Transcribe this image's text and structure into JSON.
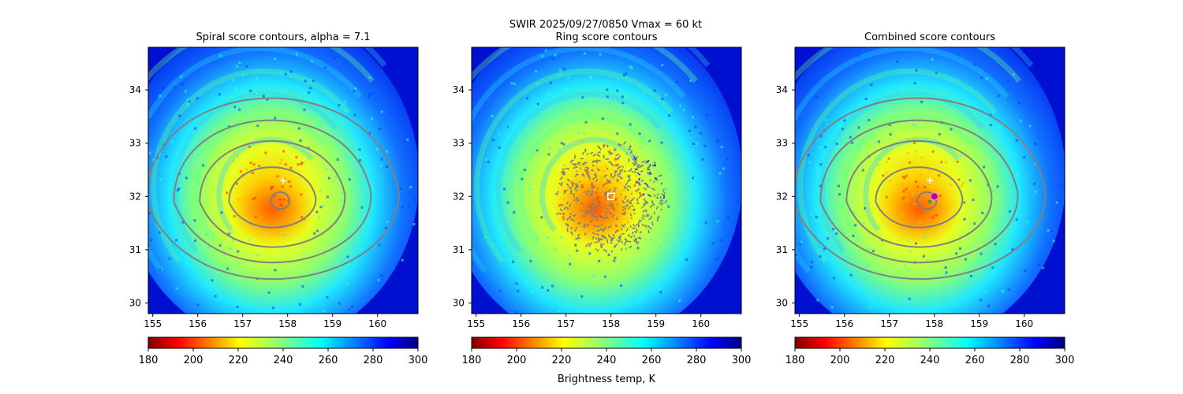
{
  "figure": {
    "suptitle_line1": "SWIR  2025/09/27/0850    Vmax = 60 kt",
    "colorbar_label": "Brightness temp, K"
  },
  "chart_data": [
    {
      "type": "heatmap",
      "title": "Spiral score contours, alpha =  7.1",
      "xlim": [
        154.9,
        160.9
      ],
      "ylim": [
        29.8,
        34.8
      ],
      "xticks": [
        "155",
        "156",
        "157",
        "158",
        "159",
        "160"
      ],
      "yticks": [
        "30",
        "31",
        "32",
        "33",
        "34"
      ],
      "overlay": "spiral",
      "markers": [
        {
          "name": "first-guess-cross",
          "x": 157.9,
          "y": 32.3,
          "color": "#ffffff",
          "shape": "plus"
        }
      ],
      "colorbar": {
        "vmin": 180,
        "vmax": 300,
        "ticks": [
          "180",
          "200",
          "220",
          "240",
          "260",
          "280",
          "300"
        ],
        "cmap": "jet_r"
      }
    },
    {
      "type": "heatmap",
      "title": "Ring score contours",
      "xlim": [
        154.9,
        160.9
      ],
      "ylim": [
        29.8,
        34.8
      ],
      "xticks": [
        "155",
        "156",
        "157",
        "158",
        "159",
        "160"
      ],
      "yticks": [
        "30",
        "31",
        "32",
        "33",
        "34"
      ],
      "overlay": "ring",
      "markers": [
        {
          "name": "ring-center-square",
          "x": 158.0,
          "y": 32.0,
          "color": "#ffffff",
          "shape": "square"
        }
      ],
      "colorbar": {
        "vmin": 180,
        "vmax": 300,
        "ticks": [
          "180",
          "200",
          "220",
          "240",
          "260",
          "280",
          "300"
        ],
        "cmap": "jet_r"
      }
    },
    {
      "type": "heatmap",
      "title": "Combined score contours",
      "xlim": [
        154.9,
        160.9
      ],
      "ylim": [
        29.8,
        34.8
      ],
      "xticks": [
        "155",
        "156",
        "157",
        "158",
        "159",
        "160"
      ],
      "yticks": [
        "30",
        "31",
        "32",
        "33",
        "34"
      ],
      "overlay": "combined",
      "markers": [
        {
          "name": "first-guess-cross",
          "x": 157.9,
          "y": 32.3,
          "color": "#ffffff",
          "shape": "plus"
        },
        {
          "name": "combined-center-dot",
          "x": 158.0,
          "y": 32.0,
          "color": "#b000b0",
          "shape": "circle"
        },
        {
          "name": "alt-center-dot",
          "x": 157.9,
          "y": 31.9,
          "color": "#2aa84a",
          "shape": "smallcircle"
        }
      ],
      "colorbar": {
        "vmin": 180,
        "vmax": 300,
        "ticks": [
          "180",
          "200",
          "220",
          "240",
          "260",
          "280",
          "300"
        ],
        "cmap": "jet_r"
      }
    }
  ]
}
